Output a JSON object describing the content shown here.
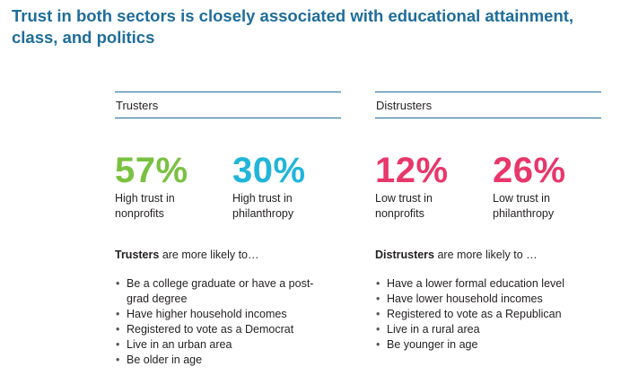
{
  "title": "Trust in both sectors is closely associated with educational attainment, class, and politics",
  "colors": {
    "title": "#1f6d9a",
    "rule": "#1f6d9a",
    "green": "#7ac142",
    "cyan": "#21b5d9",
    "pink": "#e8376b"
  },
  "trusters": {
    "heading": "Trusters",
    "stats": [
      {
        "value": "57%",
        "desc": "High trust in nonprofits",
        "color": "#7ac142"
      },
      {
        "value": "30%",
        "desc": "High trust in philanthropy",
        "color": "#21b5d9"
      }
    ],
    "lead_bold": "Trusters",
    "lead_rest": " are more likely to…",
    "bullets": [
      "Be a college graduate or have a post-grad degree",
      "Have higher household incomes",
      "Registered to vote as a Democrat",
      "Live in an urban area",
      "Be older in age"
    ]
  },
  "distrusters": {
    "heading": "Distrusters",
    "stats": [
      {
        "value": "12%",
        "desc": "Low trust in nonprofits",
        "color": "#e8376b"
      },
      {
        "value": "26%",
        "desc": "Low trust in philanthropy",
        "color": "#e8376b"
      }
    ],
    "lead_bold": "Distrusters",
    "lead_rest": " are more likely to …",
    "bullets": [
      "Have a lower formal education level",
      "Have lower household incomes",
      "Registered to vote as a Republican",
      "Live in a rural area",
      "Be younger in age"
    ]
  }
}
